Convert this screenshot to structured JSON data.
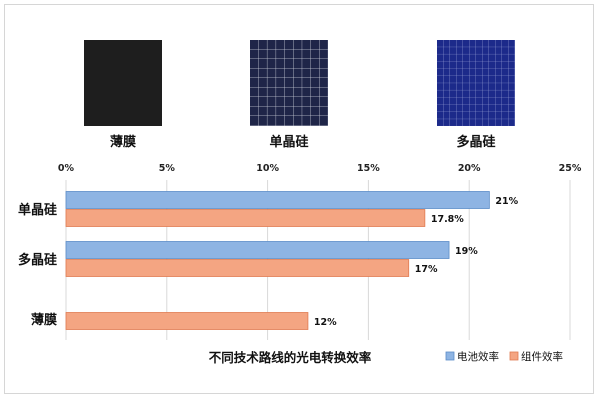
{
  "panels": [
    {
      "name": "薄膜",
      "color": "#1e1e1e"
    },
    {
      "name": "单晶硅",
      "color": "#1f2548"
    },
    {
      "name": "多晶硅",
      "color": "#1a237e"
    }
  ],
  "chart_data": {
    "type": "bar",
    "orientation": "horizontal",
    "categories": [
      "单晶硅",
      "多晶硅",
      "薄膜"
    ],
    "series": [
      {
        "name": "电池效率",
        "values": [
          21,
          19,
          null
        ],
        "labels": [
          "21%",
          "19%",
          ""
        ],
        "color": "#8eb4e3"
      },
      {
        "name": "组件效率",
        "values": [
          17.8,
          17,
          12
        ],
        "labels": [
          "17.8%",
          "17%",
          "12%"
        ],
        "color": "#f4a582"
      }
    ],
    "xlim": [
      0,
      25
    ],
    "xticks": [
      0,
      5,
      10,
      15,
      20,
      25
    ],
    "xtick_labels": [
      "0%",
      "5%",
      "10%",
      "15%",
      "20%",
      "25%"
    ],
    "xaxis_position": "top",
    "grid": true,
    "title": "不同技术路线的光电转换效率",
    "title_position": "bottom",
    "legend_position": "bottom-right"
  }
}
